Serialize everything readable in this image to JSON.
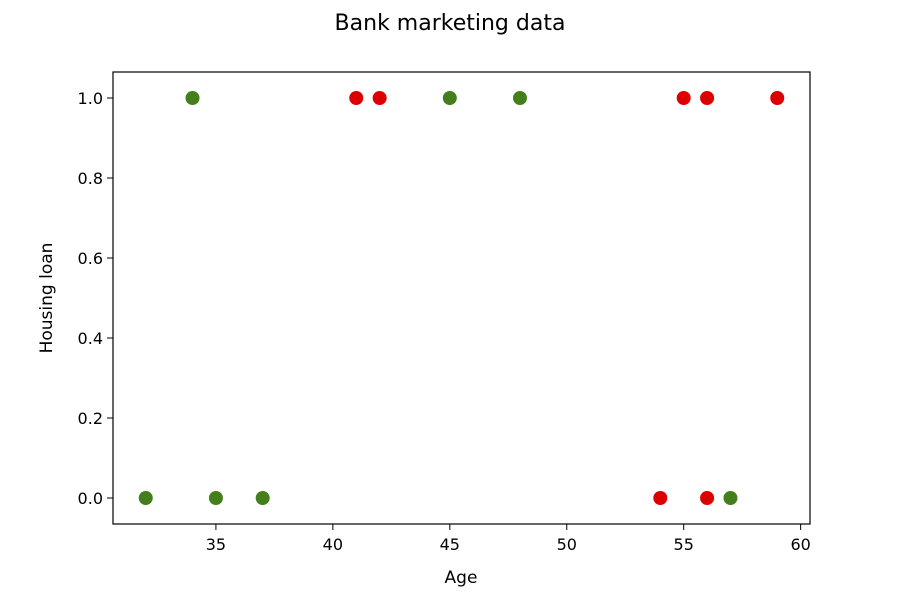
{
  "chart_data": {
    "type": "scatter",
    "title": "Bank marketing data",
    "xlabel": "Age",
    "ylabel": "Housing loan",
    "xlim": [
      30.6,
      60.4
    ],
    "ylim": [
      -0.065,
      1.065
    ],
    "xticks": [
      35,
      40,
      45,
      50,
      55,
      60
    ],
    "yticks": [
      0.0,
      0.2,
      0.4,
      0.6,
      0.8,
      1.0
    ],
    "xtick_labels": [
      "35",
      "40",
      "45",
      "50",
      "55",
      "60"
    ],
    "ytick_labels": [
      "0.0",
      "0.2",
      "0.4",
      "0.6",
      "0.8",
      "1.0"
    ],
    "grid": false,
    "legend": false,
    "series": [
      {
        "color": "#437f1a",
        "points": [
          {
            "x": 32,
            "y": 0
          },
          {
            "x": 34,
            "y": 1
          },
          {
            "x": 35,
            "y": 0
          },
          {
            "x": 37,
            "y": 0
          },
          {
            "x": 45,
            "y": 1
          },
          {
            "x": 48,
            "y": 1
          },
          {
            "x": 57,
            "y": 0
          }
        ]
      },
      {
        "color": "#dd0000",
        "points": [
          {
            "x": 41,
            "y": 1
          },
          {
            "x": 42,
            "y": 1
          },
          {
            "x": 54,
            "y": 0
          },
          {
            "x": 55,
            "y": 1
          },
          {
            "x": 56,
            "y": 1
          },
          {
            "x": 56,
            "y": 0
          },
          {
            "x": 59,
            "y": 1
          }
        ]
      }
    ]
  }
}
